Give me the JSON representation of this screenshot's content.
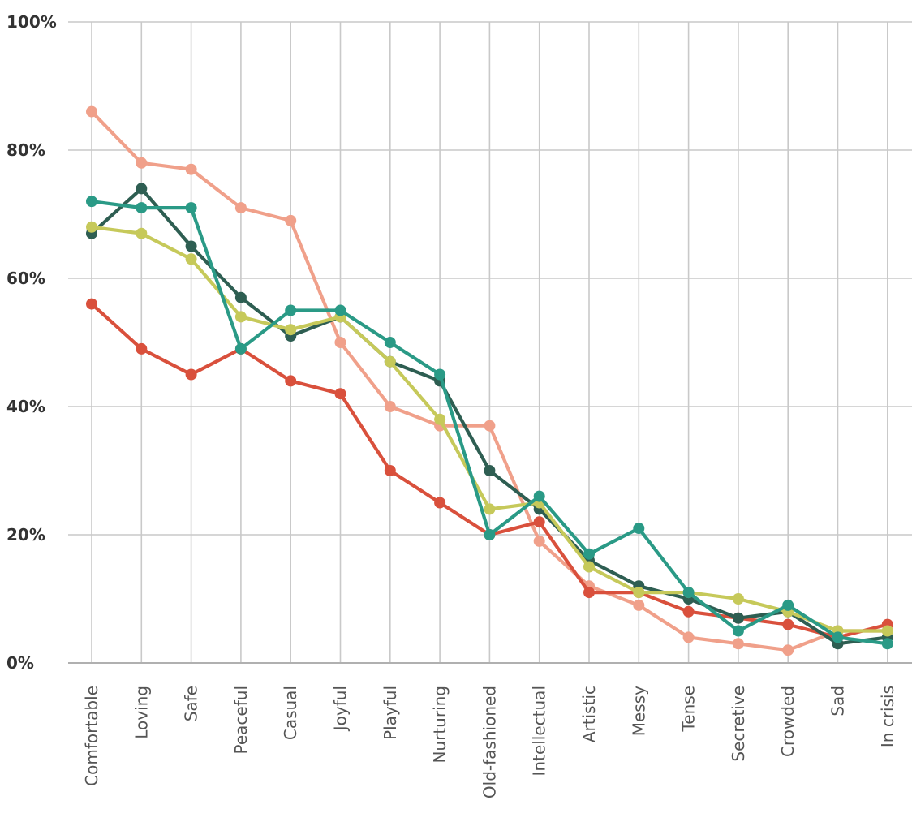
{
  "chart_data": {
    "type": "line",
    "title": "",
    "xlabel": "",
    "ylabel": "",
    "ylim": [
      0,
      100
    ],
    "yticks": [
      {
        "value": 0,
        "label": "0%"
      },
      {
        "value": 20,
        "label": "20%"
      },
      {
        "value": 40,
        "label": "40%"
      },
      {
        "value": 60,
        "label": "60%"
      },
      {
        "value": 80,
        "label": "80%"
      },
      {
        "value": 100,
        "label": "100%"
      }
    ],
    "grid": true,
    "legend": "none",
    "categories": [
      "Comfortable",
      "Loving",
      "Safe",
      "Peaceful",
      "Casual",
      "Joyful",
      "Playful",
      "Nurturing",
      "Old-fashioned",
      "Intellectual",
      "Artistic",
      "Messy",
      "Tense",
      "Secretive",
      "Crowded",
      "Sad",
      "In crisis"
    ],
    "series": [
      {
        "color": "#f0a08a",
        "values": [
          86,
          78,
          77,
          71,
          69,
          50,
          40,
          37,
          37,
          19,
          12,
          9,
          4,
          3,
          2,
          5,
          5
        ]
      },
      {
        "color": "#d9503c",
        "values": [
          56,
          49,
          45,
          49,
          44,
          42,
          30,
          25,
          20,
          22,
          11,
          11,
          8,
          7,
          6,
          4,
          6
        ]
      },
      {
        "color": "#2e5e52",
        "values": [
          67,
          74,
          65,
          57,
          51,
          54,
          47,
          44,
          30,
          24,
          16,
          12,
          10,
          7,
          8,
          3,
          4
        ]
      },
      {
        "color": "#c6c95a",
        "values": [
          68,
          67,
          63,
          54,
          52,
          54,
          47,
          38,
          24,
          25,
          15,
          11,
          11,
          10,
          8,
          5,
          5
        ]
      },
      {
        "color": "#2a9a86",
        "values": [
          72,
          71,
          71,
          49,
          55,
          55,
          50,
          45,
          20,
          26,
          17,
          21,
          11,
          5,
          9,
          4,
          3
        ]
      }
    ]
  }
}
